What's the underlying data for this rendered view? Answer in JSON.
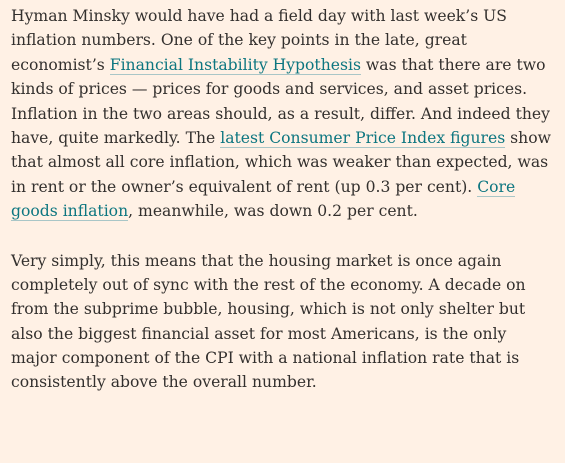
{
  "article": {
    "paragraph_1": {
      "l1": "Hyman Minsky would have had a field day with last week’s US",
      "l2": "inflation numbers. One of the key points in the late, great",
      "l3_before": "economist’s ",
      "l3_link": "Financial Instability Hypothesis",
      "l3_after": " was that there are two",
      "l4": "kinds of prices — prices for goods and services, and asset prices.",
      "l5": "Inflation in the two areas should, as a result, differ. And indeed they",
      "l6_before": "have, quite markedly. The ",
      "l6_link": "latest Consumer Price Index figures",
      "l6_after": " show",
      "l7": "that almost all core inflation, which was weaker than expected, was",
      "l8_before": "in rent or the owner’s equivalent of rent (up 0.3 per cent). ",
      "l8_link": "Core",
      "l9_link": "goods inflation",
      "l9_after": ", meanwhile, was down 0.2 per cent."
    },
    "paragraph_2": {
      "l1": "Very simply, this means that the housing market is once again",
      "l2": "completely out of sync with the rest of the economy. A decade on",
      "l3": "from the subprime bubble, housing, which is not only shelter but",
      "l4": "also the biggest financial asset for most Americans, is the only",
      "l5": "major component of the CPI with a national inflation rate that is",
      "l6": "consistently above the overall number."
    }
  },
  "colors": {
    "background": "#fff1e5",
    "text": "#33302e",
    "link": "#0d7680"
  }
}
